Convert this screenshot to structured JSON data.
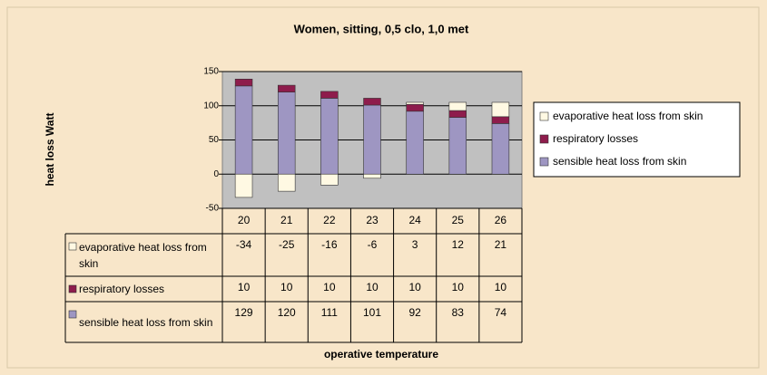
{
  "chart_data": {
    "type": "bar",
    "stacked": true,
    "title": "Women, sitting, 0,5 clo, 1,0 met",
    "y_label": "heat loss Watt",
    "x_label": "operative temperature",
    "categories": [
      "20",
      "21",
      "22",
      "23",
      "24",
      "25",
      "26"
    ],
    "series": [
      {
        "name": "evaporative heat loss from skin",
        "color": "#fff9e3",
        "values": [
          -34,
          -25,
          -16,
          -6,
          3,
          12,
          21
        ]
      },
      {
        "name": "respiratory losses",
        "color": "#8e1c4c",
        "values": [
          10,
          10,
          10,
          10,
          10,
          10,
          10
        ]
      },
      {
        "name": "sensible heat loss from skin",
        "color": "#9e96c2",
        "values": [
          129,
          120,
          111,
          101,
          92,
          83,
          74
        ]
      }
    ],
    "ylim": [
      -50,
      150
    ],
    "yticks": [
      -50,
      0,
      50,
      100,
      150
    ],
    "grid": true,
    "legend": "right",
    "data_table": true
  }
}
